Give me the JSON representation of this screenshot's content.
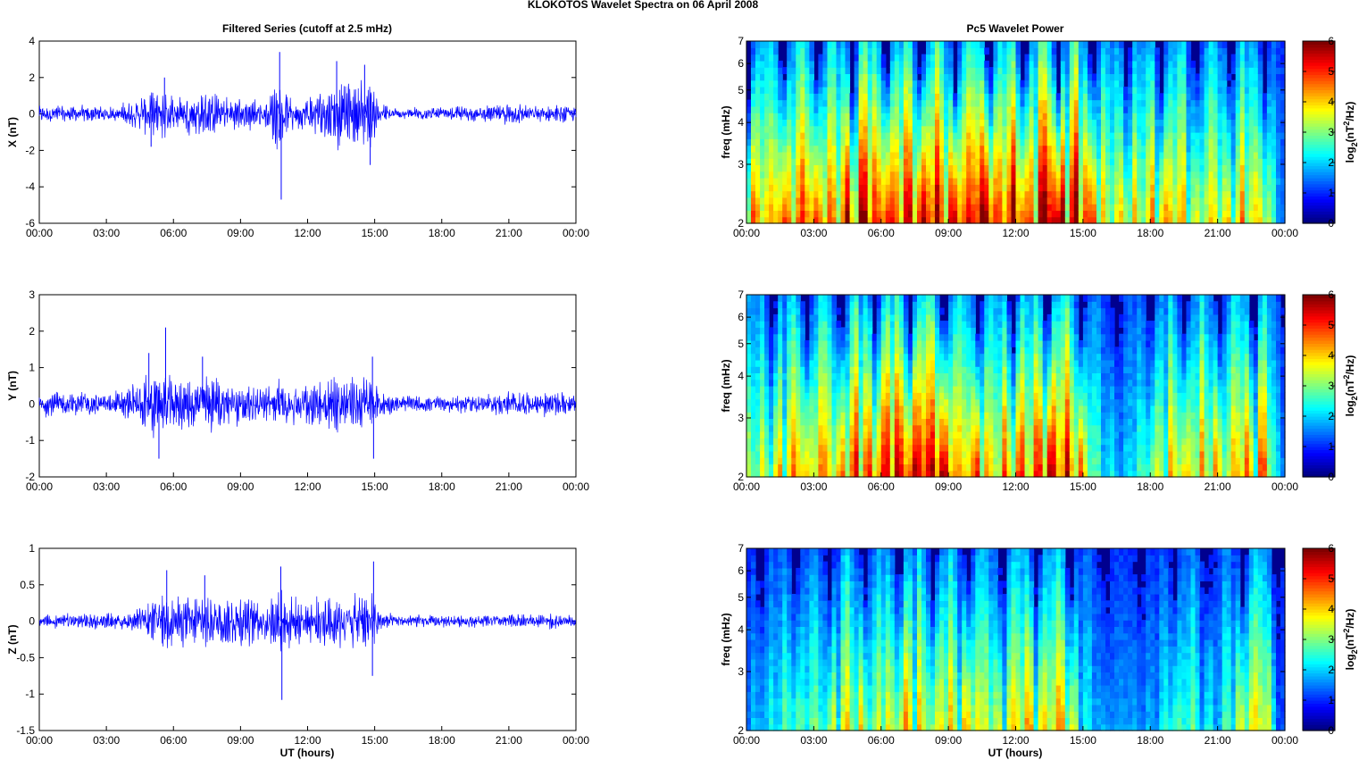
{
  "figure": {
    "suptitle": "KLOKOTOS Wavelet Spectra on 06 April     2008",
    "left_title": "Filtered Series (cutoff at 2.5 mHz)",
    "right_title": "Pc5 Wavelet Power",
    "xlabel": "UT (hours)",
    "colorbar_label": "log2(nT²/Hz)",
    "colorbar_label_base": "log",
    "colorbar_label_sub": "2",
    "colorbar_label_mid": "(nT",
    "colorbar_label_sup": "2",
    "colorbar_label_end": "/Hz)"
  },
  "colors": {
    "line": "#0000ff",
    "background": "#00008f",
    "axis": "#000000"
  },
  "chart_data": [
    {
      "type": "line",
      "component": "X",
      "ylabel": "X (nT)",
      "xlim": [
        0,
        24
      ],
      "ylim": [
        -6,
        4
      ],
      "xticks": [
        "00:00",
        "03:00",
        "06:00",
        "09:00",
        "12:00",
        "15:00",
        "18:00",
        "21:00",
        "00:00"
      ],
      "yticks": [
        "4",
        "2",
        "0",
        "-2",
        "-4",
        "-6"
      ],
      "x_unit": "UT hours",
      "envelope": {
        "x": [
          0,
          1,
          2,
          3,
          4,
          4.6,
          5.2,
          5.7,
          6.2,
          6.8,
          7.4,
          8,
          8.6,
          9.2,
          9.8,
          10.3,
          10.75,
          11.2,
          11.8,
          12.4,
          13,
          13.5,
          14,
          14.5,
          14.9,
          15.3,
          16,
          17,
          18,
          19,
          20,
          21,
          22,
          23,
          24
        ],
        "amplitude": [
          0.5,
          0.6,
          0.55,
          0.5,
          0.7,
          1.2,
          1.6,
          1.5,
          1.1,
          1.3,
          1.7,
          1.2,
          1.1,
          1.3,
          1.0,
          1.0,
          3.3,
          1.2,
          1.1,
          1.5,
          1.8,
          2.2,
          1.9,
          2.3,
          2.0,
          0.7,
          0.4,
          0.45,
          0.4,
          0.5,
          0.45,
          0.7,
          0.55,
          0.55,
          0.5
        ],
        "spikes": [
          {
            "x": 10.75,
            "y": 3.4
          },
          {
            "x": 10.82,
            "y": -4.7
          },
          {
            "x": 13.3,
            "y": 2.9
          },
          {
            "x": 14.55,
            "y": 2.7
          },
          {
            "x": 14.8,
            "y": -2.8
          },
          {
            "x": 5.6,
            "y": 2.0
          },
          {
            "x": 5.0,
            "y": -1.8
          }
        ]
      }
    },
    {
      "type": "line",
      "component": "Y",
      "ylabel": "Y (nT)",
      "xlim": [
        0,
        24
      ],
      "ylim": [
        -2,
        3
      ],
      "xticks": [
        "00:00",
        "03:00",
        "06:00",
        "09:00",
        "12:00",
        "15:00",
        "18:00",
        "21:00",
        "00:00"
      ],
      "yticks": [
        "3",
        "2",
        "1",
        "0",
        "-1",
        "-2"
      ],
      "x_unit": "UT hours",
      "envelope": {
        "x": [
          0,
          1,
          2,
          3,
          4,
          4.6,
          5.2,
          5.7,
          6.2,
          6.8,
          7.4,
          8,
          8.6,
          9.2,
          9.8,
          10.3,
          10.75,
          11.2,
          11.8,
          12.4,
          13,
          13.5,
          14,
          14.5,
          14.9,
          15.3,
          16,
          17,
          18,
          19,
          20,
          21,
          22,
          23,
          24
        ],
        "amplitude": [
          0.35,
          0.4,
          0.4,
          0.35,
          0.5,
          0.9,
          1.1,
          1.0,
          0.8,
          0.9,
          1.0,
          0.8,
          0.7,
          0.7,
          0.6,
          0.6,
          0.8,
          0.7,
          0.6,
          0.8,
          0.9,
          1.0,
          0.8,
          0.9,
          0.8,
          0.4,
          0.3,
          0.3,
          0.25,
          0.3,
          0.3,
          0.4,
          0.35,
          0.4,
          0.3
        ],
        "spikes": [
          {
            "x": 5.65,
            "y": 2.1
          },
          {
            "x": 4.9,
            "y": 1.4
          },
          {
            "x": 5.35,
            "y": -1.5
          },
          {
            "x": 14.9,
            "y": 1.3
          },
          {
            "x": 14.95,
            "y": -1.5
          },
          {
            "x": 7.3,
            "y": 1.3
          }
        ]
      }
    },
    {
      "type": "line",
      "component": "Z",
      "ylabel": "Z (nT)",
      "xlim": [
        0,
        24
      ],
      "ylim": [
        -1.5,
        1
      ],
      "xticks": [
        "00:00",
        "03:00",
        "06:00",
        "09:00",
        "12:00",
        "15:00",
        "18:00",
        "21:00",
        "00:00"
      ],
      "yticks": [
        "1",
        "0.5",
        "0",
        "-0.5",
        "-1",
        "-1.5"
      ],
      "x_unit": "UT hours",
      "envelope": {
        "x": [
          0,
          1,
          2,
          3,
          4,
          4.6,
          5.2,
          5.7,
          6.2,
          6.8,
          7.4,
          8,
          8.6,
          9.2,
          9.8,
          10.3,
          10.75,
          11.2,
          11.8,
          12.4,
          13,
          13.5,
          14,
          14.5,
          14.9,
          15.3,
          16,
          17,
          18,
          19,
          20,
          21,
          22,
          23,
          24
        ],
        "amplitude": [
          0.1,
          0.12,
          0.12,
          0.12,
          0.15,
          0.25,
          0.4,
          0.45,
          0.35,
          0.4,
          0.45,
          0.4,
          0.4,
          0.5,
          0.35,
          0.35,
          0.6,
          0.4,
          0.35,
          0.45,
          0.45,
          0.5,
          0.45,
          0.6,
          0.5,
          0.15,
          0.1,
          0.1,
          0.09,
          0.1,
          0.1,
          0.12,
          0.1,
          0.12,
          0.1
        ],
        "spikes": [
          {
            "x": 10.8,
            "y": 0.75
          },
          {
            "x": 10.85,
            "y": -1.08
          },
          {
            "x": 14.95,
            "y": 0.82
          },
          {
            "x": 14.9,
            "y": -0.75
          },
          {
            "x": 7.4,
            "y": 0.63
          },
          {
            "x": 5.7,
            "y": 0.7
          }
        ]
      }
    },
    {
      "type": "heatmap",
      "component": "X",
      "ylabel": "freq (mHz)",
      "xlim": [
        0,
        24
      ],
      "ylim": [
        2,
        7
      ],
      "yscale": "log",
      "xticks": [
        "00:00",
        "03:00",
        "06:00",
        "09:00",
        "12:00",
        "15:00",
        "18:00",
        "21:00",
        "00:00"
      ],
      "yticks": [
        "2",
        "3",
        "4",
        "5",
        "6",
        "7"
      ],
      "colorbar": {
        "min": 0,
        "max": 6,
        "ticks": [
          "0",
          "1",
          "2",
          "3",
          "4",
          "5",
          "6"
        ],
        "colormap": "jet"
      },
      "level": {
        "x": [
          0,
          1,
          2,
          3,
          4,
          5,
          6,
          7,
          8,
          9,
          10,
          11,
          12,
          13,
          14,
          15,
          16,
          17,
          18,
          19,
          20,
          21,
          22,
          23,
          24
        ],
        "power": [
          4.0,
          4.3,
          4.6,
          4.6,
          4.8,
          5.2,
          5.1,
          5.6,
          5.3,
          5.0,
          5.0,
          5.2,
          4.9,
          5.6,
          5.7,
          5.4,
          3.5,
          3.6,
          3.6,
          3.7,
          3.8,
          3.7,
          4.1,
          3.6,
          0.5
        ]
      }
    },
    {
      "type": "heatmap",
      "component": "Y",
      "ylabel": "freq (mHz)",
      "xlim": [
        0,
        24
      ],
      "ylim": [
        2,
        7
      ],
      "yscale": "log",
      "xticks": [
        "00:00",
        "03:00",
        "06:00",
        "09:00",
        "12:00",
        "15:00",
        "18:00",
        "21:00",
        "00:00"
      ],
      "yticks": [
        "2",
        "3",
        "4",
        "5",
        "6",
        "7"
      ],
      "colorbar": {
        "min": 0,
        "max": 6,
        "ticks": [
          "0",
          "1",
          "2",
          "3",
          "4",
          "5",
          "6"
        ],
        "colormap": "jet"
      },
      "level": {
        "x": [
          0,
          1,
          2,
          3,
          4,
          5,
          6,
          7,
          8,
          9,
          10,
          11,
          12,
          13,
          14,
          15,
          16,
          17,
          18,
          19,
          20,
          21,
          22,
          23,
          24
        ],
        "power": [
          2.6,
          2.9,
          3.6,
          3.7,
          3.8,
          4.6,
          4.3,
          5.4,
          4.9,
          4.9,
          4.3,
          4.0,
          3.8,
          4.6,
          4.9,
          4.0,
          1.6,
          1.5,
          2.4,
          3.6,
          3.8,
          3.6,
          4.1,
          4.3,
          0.4
        ]
      }
    },
    {
      "type": "heatmap",
      "component": "Z",
      "ylabel": "freq (mHz)",
      "xlim": [
        0,
        24
      ],
      "ylim": [
        2,
        7
      ],
      "yscale": "log",
      "xticks": [
        "00:00",
        "03:00",
        "06:00",
        "09:00",
        "12:00",
        "15:00",
        "18:00",
        "21:00",
        "00:00"
      ],
      "yticks": [
        "2",
        "3",
        "4",
        "5",
        "6",
        "7"
      ],
      "colorbar": {
        "min": 0,
        "max": 6,
        "ticks": [
          "0",
          "1",
          "2",
          "3",
          "4",
          "5",
          "6"
        ],
        "colormap": "jet"
      },
      "level": {
        "x": [
          0,
          1,
          2,
          3,
          4,
          5,
          6,
          7,
          8,
          9,
          10,
          11,
          12,
          13,
          14,
          15,
          16,
          17,
          18,
          19,
          20,
          21,
          22,
          23,
          24
        ],
        "power": [
          1.2,
          1.6,
          2.3,
          2.2,
          2.9,
          3.2,
          2.7,
          4.1,
          3.2,
          3.3,
          3.5,
          3.0,
          3.4,
          3.5,
          4.3,
          2.3,
          1.0,
          1.3,
          1.0,
          1.9,
          2.2,
          1.6,
          2.8,
          3.6,
          0.1
        ]
      }
    }
  ]
}
